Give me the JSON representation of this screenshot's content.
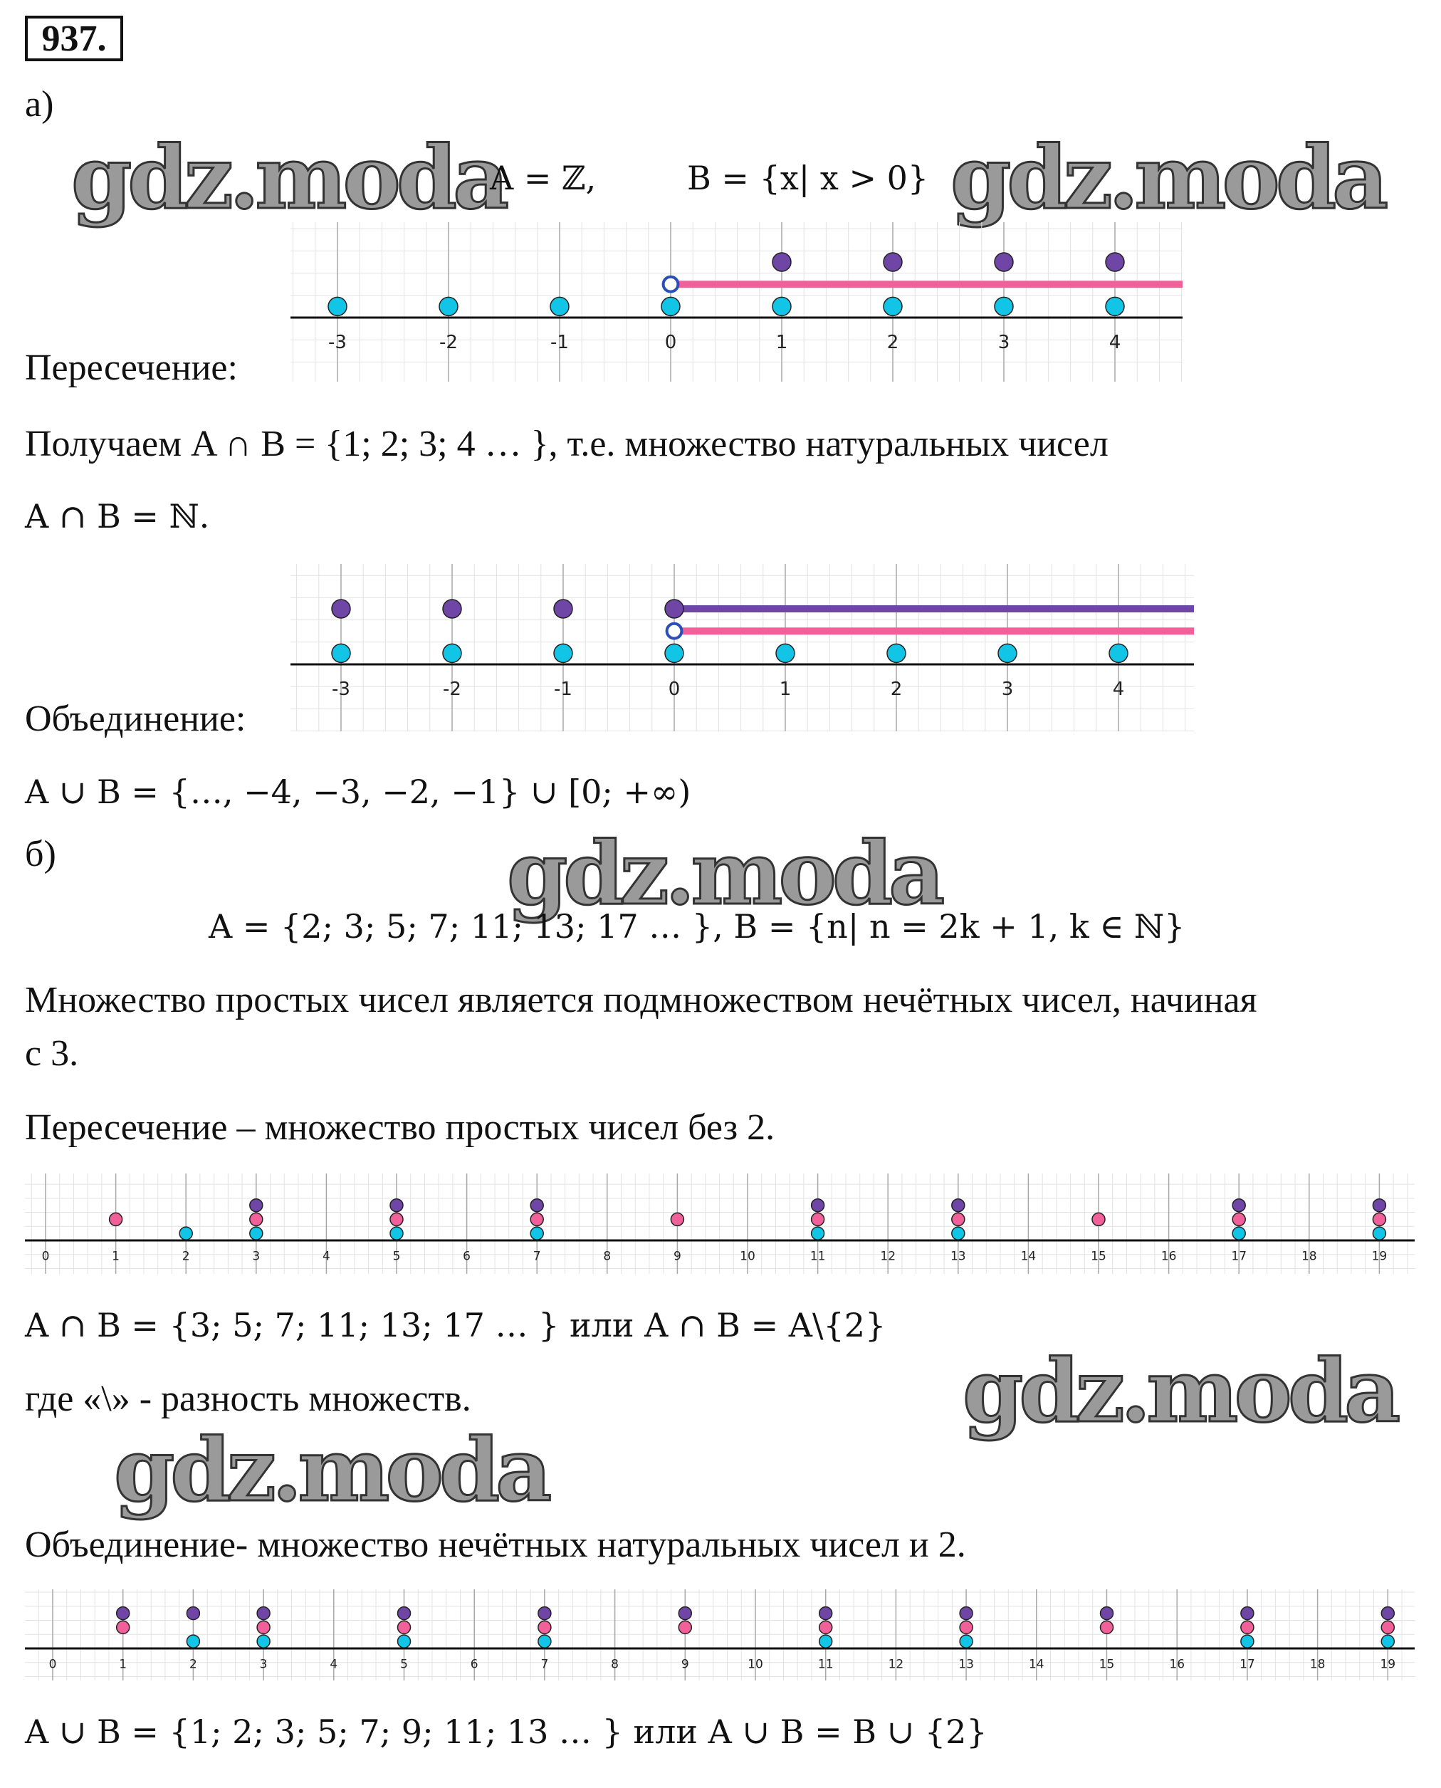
{
  "problem_number": "937.",
  "watermark": "gdz.moda",
  "part_a": {
    "label": "а)",
    "sets": "A = ℤ,",
    "sets_b": "B = {x| x > 0}",
    "intersection_label": "Пересечение:",
    "intersection_result": "Получаем A ∩ B = {1; 2; 3; 4 … }, т.е. множество натуральных чисел",
    "intersection_result2": "A ∩ B = ℕ.",
    "union_label": "Объединение:",
    "union_result": "A ∪ B = {…, −4, −3, −2, −1} ∪ [0; +∞)"
  },
  "part_b": {
    "label": "б)",
    "sets": "A = {2; 3; 5; 7; 11; 13; 17 … },   B = {n| n = 2k + 1, k ∈ ℕ}",
    "statement": "Множество простых чисел является подмножеством нечётных чисел, начиная",
    "statement2": "с 3.",
    "intersection_label": "Пересечение – множество простых чисел без 2.",
    "intersection_result": "A ∩ B = {3; 5; 7; 11; 13; 17 … } или A ∩ B = A\\{2}",
    "difference_note": "где «\\» - разность множеств.",
    "union_label": "Объединение- множество нечётных натуральных чисел и 2.",
    "union_result": "A ∪ B = {1; 2; 3; 5; 7; 9; 11; 13 … } или A ∪ B = B ∪ {2}"
  },
  "colors": {
    "A": "#12c4e6",
    "B": "#f2609a",
    "result": "#6f45a6",
    "open_point": "#2a4fb8",
    "axis": "#111111",
    "grid": "#e2e2e2"
  },
  "chart_data": [
    {
      "type": "scatter",
      "xlim": [
        -3,
        4
      ],
      "ticks": [
        -3,
        -2,
        -1,
        0,
        1,
        2,
        3,
        4
      ],
      "grid": true,
      "series": [
        {
          "set": "A",
          "color": "#12c4e6",
          "row": 0,
          "points": [
            -3,
            -2,
            -1,
            0,
            1,
            2,
            3,
            4
          ]
        },
        {
          "set": "B",
          "color": "#f2609a",
          "row": 1,
          "ray_from": 0,
          "ray_open": true
        },
        {
          "set": "A∩B",
          "color": "#6f45a6",
          "row": 2,
          "points": [
            1,
            2,
            3,
            4
          ]
        }
      ]
    },
    {
      "type": "scatter",
      "xlim": [
        -3,
        4
      ],
      "ticks": [
        -3,
        -2,
        -1,
        0,
        1,
        2,
        3,
        4
      ],
      "grid": true,
      "series": [
        {
          "set": "A",
          "color": "#12c4e6",
          "row": 0,
          "points": [
            -3,
            -2,
            -1,
            0,
            1,
            2,
            3,
            4
          ]
        },
        {
          "set": "B",
          "color": "#f2609a",
          "row": 1,
          "ray_from": 0,
          "ray_open": true
        },
        {
          "set": "A∪B",
          "color": "#6f45a6",
          "row": 2,
          "points": [
            -3,
            -2,
            -1
          ],
          "ray_from": 0,
          "ray_open": false
        }
      ]
    },
    {
      "type": "scatter",
      "xlim": [
        0,
        19
      ],
      "ticks": [
        0,
        1,
        2,
        3,
        4,
        5,
        6,
        7,
        8,
        9,
        10,
        11,
        12,
        13,
        14,
        15,
        16,
        17,
        18,
        19
      ],
      "grid": true,
      "series": [
        {
          "set": "A",
          "color": "#12c4e6",
          "row": 0,
          "points": [
            2,
            3,
            5,
            7,
            11,
            13,
            17,
            19
          ]
        },
        {
          "set": "B",
          "color": "#f2609a",
          "row": 1,
          "points": [
            1,
            3,
            5,
            7,
            9,
            11,
            13,
            15,
            17,
            19
          ]
        },
        {
          "set": "A∩B",
          "color": "#6f45a6",
          "row": 2,
          "points": [
            3,
            5,
            7,
            11,
            13,
            17,
            19
          ]
        }
      ]
    },
    {
      "type": "scatter",
      "xlim": [
        0,
        19
      ],
      "ticks": [
        0,
        1,
        2,
        3,
        4,
        5,
        6,
        7,
        8,
        9,
        10,
        11,
        12,
        13,
        14,
        15,
        16,
        17,
        18,
        19
      ],
      "grid": true,
      "series": [
        {
          "set": "A",
          "color": "#12c4e6",
          "row": 0,
          "points": [
            2,
            3,
            5,
            7,
            11,
            13,
            17,
            19
          ]
        },
        {
          "set": "B",
          "color": "#f2609a",
          "row": 1,
          "points": [
            1,
            3,
            5,
            7,
            9,
            11,
            13,
            15,
            17,
            19
          ]
        },
        {
          "set": "A∪B",
          "color": "#6f45a6",
          "row": 2,
          "points": [
            1,
            2,
            3,
            5,
            7,
            9,
            11,
            13,
            15,
            17,
            19
          ]
        }
      ]
    }
  ]
}
